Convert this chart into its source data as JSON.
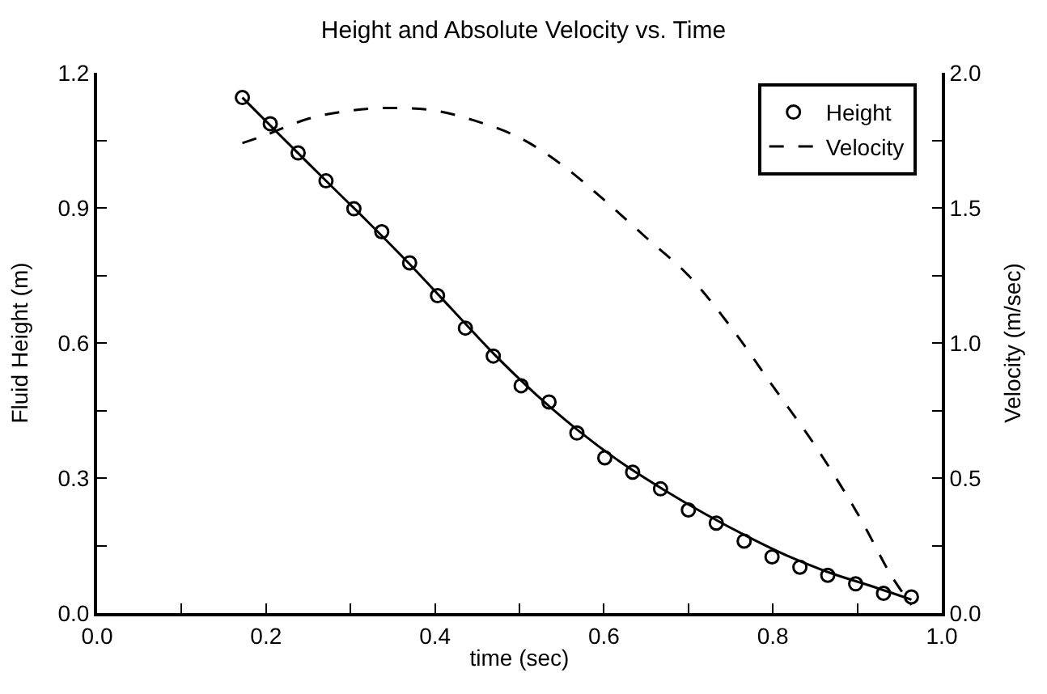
{
  "chart_data": {
    "type": "scatter",
    "title": "Height and Absolute Velocity vs. Time",
    "xlabel": "time (sec)",
    "ylabel": "Fluid Height (m)",
    "y2label": "Velocity (m/sec)",
    "xlim": [
      0,
      1
    ],
    "xticks": [
      {
        "value": 0,
        "label": "0.0"
      },
      {
        "value": 0.1,
        "label": null
      },
      0.2,
      {
        "value": 0.3,
        "label": null
      },
      0.4,
      {
        "value": 0.5,
        "label": null
      },
      0.6,
      {
        "value": 0.7,
        "label": null
      },
      0.8,
      {
        "value": 0.9,
        "label": null
      },
      {
        "value": 1,
        "label": "1.0"
      }
    ],
    "ylim": [
      0,
      1.2
    ],
    "yticks": [
      {
        "value": 0,
        "label": "0.0"
      },
      {
        "value": 0.15,
        "label": null
      },
      0.3,
      {
        "value": 0.45,
        "label": null
      },
      0.6,
      {
        "value": 0.75,
        "label": null
      },
      0.9,
      {
        "value": 1.05,
        "label": null
      },
      1.2
    ],
    "y2lim": [
      0,
      2
    ],
    "y2ticks": [
      {
        "value": 0,
        "label": "0.0"
      },
      {
        "value": 0.25,
        "label": null
      },
      0.5,
      {
        "value": 0.75,
        "label": null
      },
      {
        "value": 1,
        "label": "1.0"
      },
      {
        "value": 1.25,
        "label": null
      },
      1.5,
      {
        "value": 1.75,
        "label": null
      },
      {
        "value": 2,
        "label": "2.0"
      }
    ],
    "legend": "top right",
    "series": [
      {
        "name": "Height",
        "marker": "circle",
        "color": "#000000",
        "x": [
          0.172,
          0.205,
          0.238,
          0.271,
          0.304,
          0.337,
          0.37,
          0.403,
          0.436,
          0.469,
          0.502,
          0.535,
          0.568,
          0.601,
          0.634,
          0.667,
          0.7,
          0.733,
          0.766,
          0.799,
          0.832,
          0.865,
          0.898,
          0.931,
          0.964
        ],
        "values": [
          1.145,
          1.087,
          1.022,
          0.96,
          0.898,
          0.847,
          0.778,
          0.705,
          0.633,
          0.571,
          0.505,
          0.469,
          0.4,
          0.345,
          0.313,
          0.276,
          0.229,
          0.2,
          0.16,
          0.125,
          0.102,
          0.084,
          0.065,
          0.044,
          0.036
        ]
      },
      {
        "type": "line",
        "line_style": "solid",
        "color": "#000000",
        "x": [
          0.172,
          0.22,
          0.27,
          0.32,
          0.37,
          0.42,
          0.47,
          0.52,
          0.57,
          0.62,
          0.67,
          0.72,
          0.77,
          0.82,
          0.87,
          0.92,
          0.964
        ],
        "values": [
          1.145,
          1.055,
          0.962,
          0.87,
          0.775,
          0.675,
          0.575,
          0.485,
          0.405,
          0.335,
          0.275,
          0.22,
          0.17,
          0.125,
          0.088,
          0.058,
          0.03
        ]
      },
      {
        "name": "Velocity",
        "type": "line",
        "line_style": "dashed",
        "axis": "y2",
        "color": "#000000",
        "x": [
          0.172,
          0.2,
          0.25,
          0.3,
          0.35,
          0.4,
          0.45,
          0.5,
          0.55,
          0.6,
          0.65,
          0.7,
          0.75,
          0.8,
          0.85,
          0.9,
          0.94,
          0.964
        ],
        "values": [
          1.74,
          1.77,
          1.83,
          1.86,
          1.87,
          1.86,
          1.82,
          1.76,
          1.66,
          1.53,
          1.39,
          1.25,
          1.06,
          0.84,
          0.62,
          0.37,
          0.14,
          0.03
        ]
      }
    ]
  }
}
